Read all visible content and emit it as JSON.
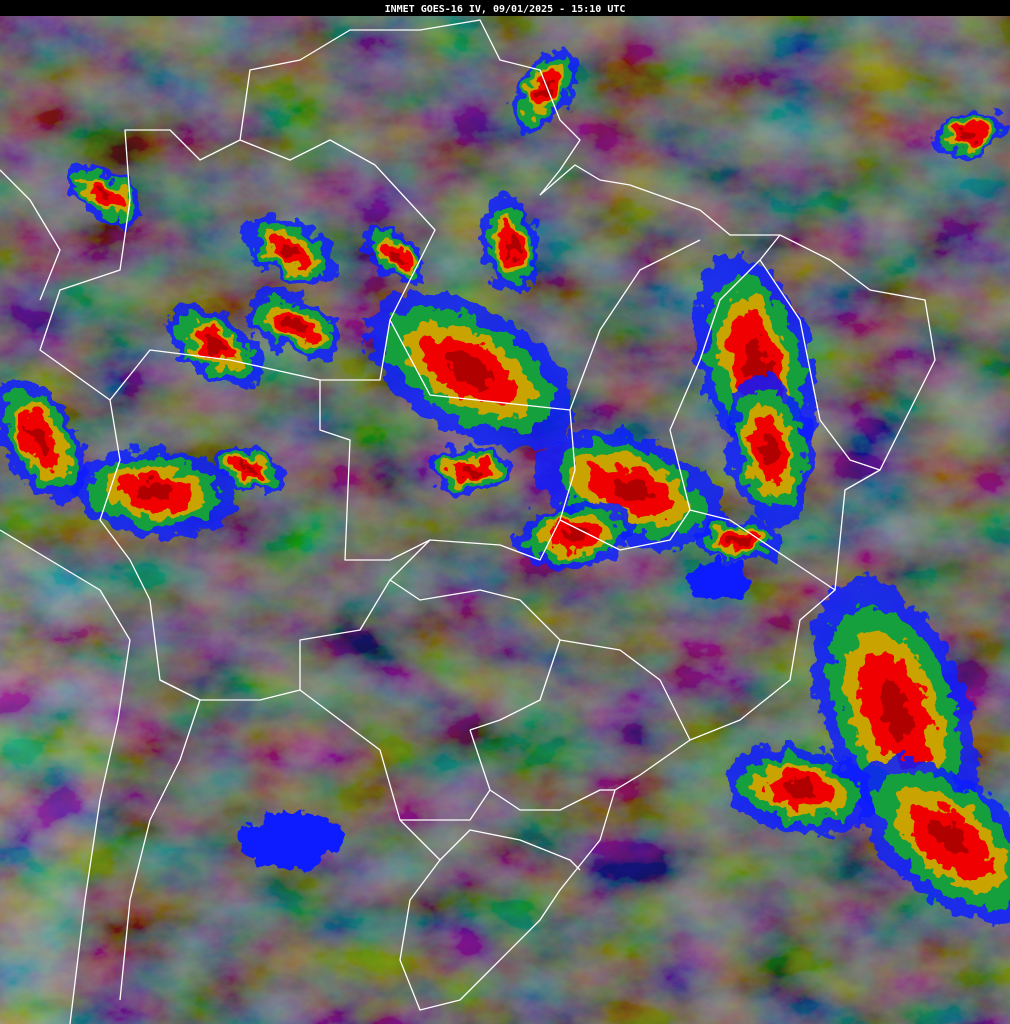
{
  "header": {
    "title": "INMET GOES-16 IV, 09/01/2025 - 15:10 UTC"
  }
}
